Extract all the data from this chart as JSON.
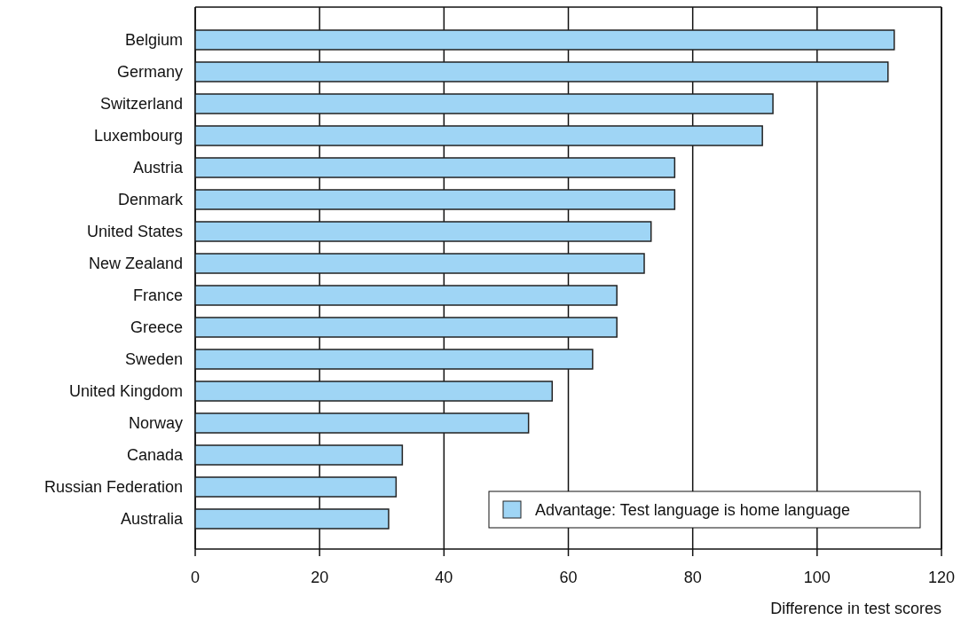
{
  "chart_data": {
    "type": "bar",
    "orientation": "horizontal",
    "xlabel": "Difference in test scores",
    "categories": [
      "Belgium",
      "Germany",
      "Switzerland",
      "Luxembourg",
      "Austria",
      "Denmark",
      "United States",
      "New Zealand",
      "France",
      "Greece",
      "Sweden",
      "United Kingdom",
      "Norway",
      "Canada",
      "Russian Federation",
      "Australia"
    ],
    "series": [
      {
        "name": "Advantage: Test language is home language",
        "color": "#9fd5f5",
        "values": [
          112.4,
          111.4,
          92.9,
          91.2,
          77.1,
          77.1,
          73.3,
          72.2,
          67.8,
          67.8,
          63.9,
          57.4,
          53.6,
          33.3,
          32.3,
          31.1
        ]
      }
    ],
    "xlim": [
      0,
      120
    ],
    "xticks": [
      0,
      20,
      40,
      60,
      80,
      100,
      120
    ],
    "grid": "x",
    "legend": "bottom right"
  }
}
